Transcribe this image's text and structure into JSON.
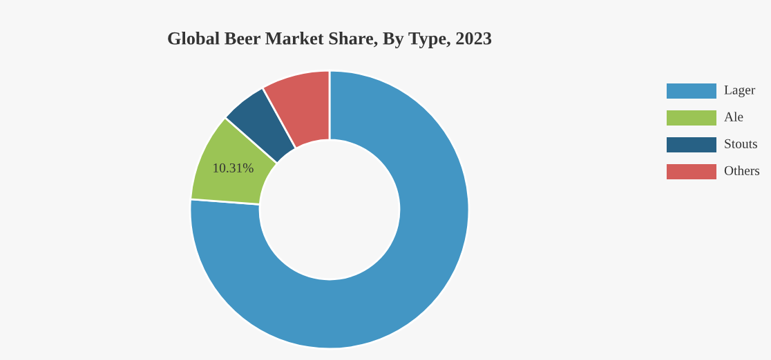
{
  "chart_data": {
    "type": "donut",
    "title": "Global Beer Market Share, By Type, 2023",
    "categories": [
      "Lager",
      "Ale",
      "Stouts",
      "Others"
    ],
    "values": [
      76.2,
      10.31,
      5.5,
      7.99
    ],
    "colors": [
      "#4396c4",
      "#9bc455",
      "#276185",
      "#d45d5a"
    ],
    "value_labels": [
      null,
      "10.31%",
      null,
      null
    ],
    "legend": "top right"
  }
}
